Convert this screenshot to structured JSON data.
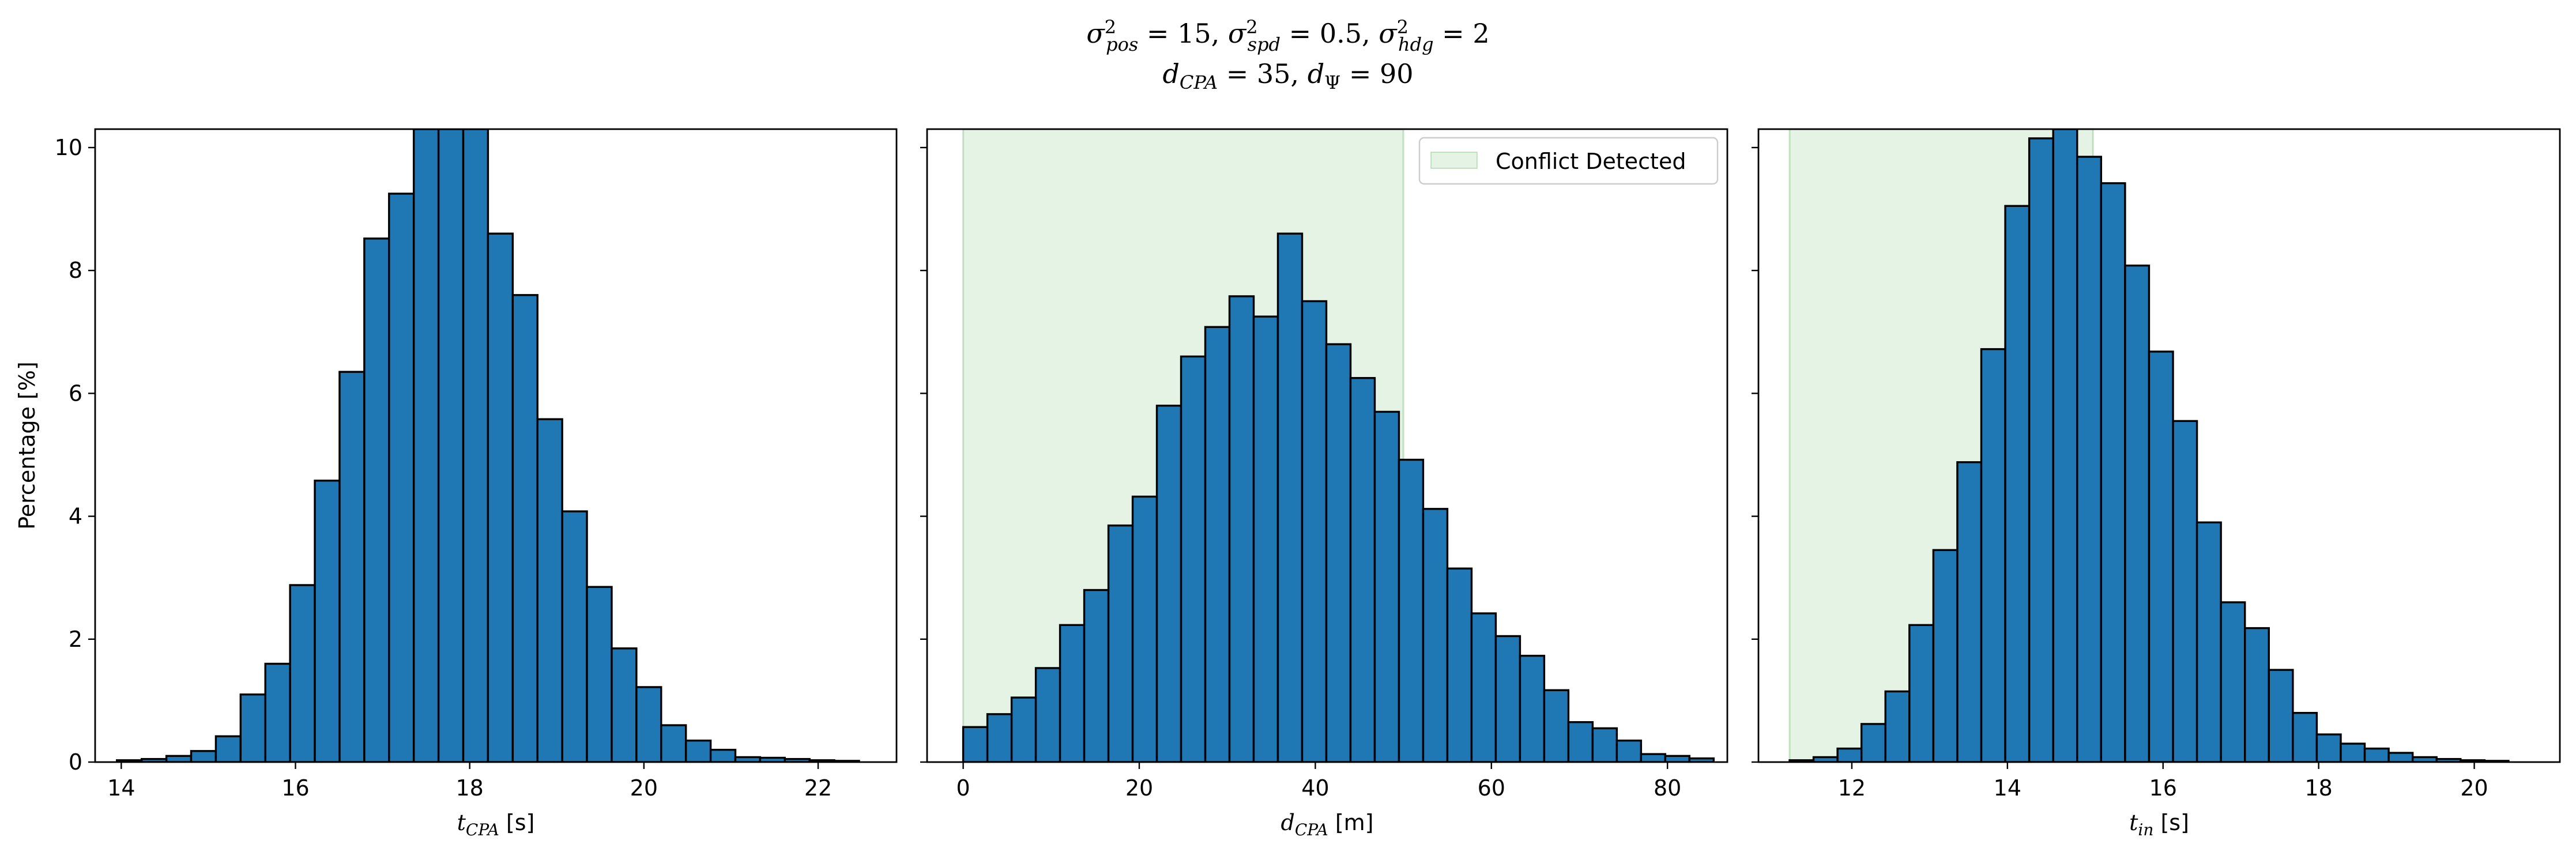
{
  "figure": {
    "title_line1": "σ²pos = 15, σ²spd = 0.5, σ²hdg = 2",
    "title_line2": "dCPA = 35, dΨ = 90"
  },
  "colors": {
    "bar_fill": "#1f77b4",
    "bar_edge": "#000000",
    "conflict_region": "#2ca02c"
  },
  "legend": {
    "entry": "Conflict Detected",
    "placement": "upper right (middle panel)"
  },
  "chart_data": [
    {
      "type": "bar",
      "panel": "t_cpa",
      "xlabel_main": "t",
      "xlabel_sub": "CPA",
      "xlabel_unit": " [s]",
      "ylabel": "Percentage [%]",
      "xlim": [
        13.7,
        22.9
      ],
      "ylim": [
        0,
        10.3
      ],
      "xticks": [
        14,
        16,
        18,
        20,
        22
      ],
      "yticks": [
        0,
        2,
        4,
        6,
        8,
        10
      ],
      "bin_start": 13.95,
      "bin_width": 0.284,
      "values": [
        0.03,
        0.05,
        0.1,
        0.18,
        0.42,
        1.1,
        1.6,
        2.88,
        4.58,
        6.35,
        8.52,
        9.25,
        10.3,
        10.3,
        10.3,
        8.6,
        7.6,
        5.58,
        4.08,
        2.85,
        1.85,
        1.22,
        0.6,
        0.35,
        0.2,
        0.08,
        0.07,
        0.05,
        0.03,
        0.02
      ],
      "shaded_region": null
    },
    {
      "type": "bar",
      "panel": "d_cpa",
      "xlabel_main": "d",
      "xlabel_sub": "CPA",
      "xlabel_unit": " [m]",
      "xlim": [
        -4.1,
        86.8
      ],
      "ylim": [
        0,
        10.3
      ],
      "xticks": [
        0,
        20,
        40,
        60,
        80
      ],
      "yticks": [
        0,
        2,
        4,
        6,
        8,
        10
      ],
      "bin_start": 0.0,
      "bin_width": 2.75,
      "values": [
        0.57,
        0.78,
        1.05,
        1.53,
        2.23,
        2.8,
        3.85,
        4.32,
        5.8,
        6.6,
        7.08,
        7.58,
        7.25,
        8.6,
        7.5,
        6.8,
        6.25,
        5.7,
        4.92,
        4.12,
        3.15,
        2.42,
        2.05,
        1.73,
        1.17,
        0.65,
        0.55,
        0.35,
        0.13,
        0.1,
        0.06
      ],
      "shaded_region": [
        0,
        50
      ]
    },
    {
      "type": "bar",
      "panel": "t_in",
      "xlabel_main": "t",
      "xlabel_sub": "in",
      "xlabel_unit": " [s]",
      "xlim": [
        10.8,
        21.1
      ],
      "ylim": [
        0,
        10.3
      ],
      "xticks": [
        12,
        14,
        16,
        18,
        20
      ],
      "yticks": [
        0,
        2,
        4,
        6,
        8,
        10
      ],
      "bin_start": 11.2,
      "bin_width": 0.308,
      "values": [
        0.03,
        0.08,
        0.22,
        0.62,
        1.15,
        2.23,
        3.45,
        4.88,
        6.72,
        9.05,
        10.15,
        10.3,
        9.85,
        9.42,
        8.08,
        6.68,
        5.55,
        3.9,
        2.6,
        2.18,
        1.5,
        0.8,
        0.45,
        0.3,
        0.22,
        0.15,
        0.08,
        0.05,
        0.03,
        0.02
      ],
      "shaded_region": [
        11.2,
        15.1
      ]
    }
  ]
}
